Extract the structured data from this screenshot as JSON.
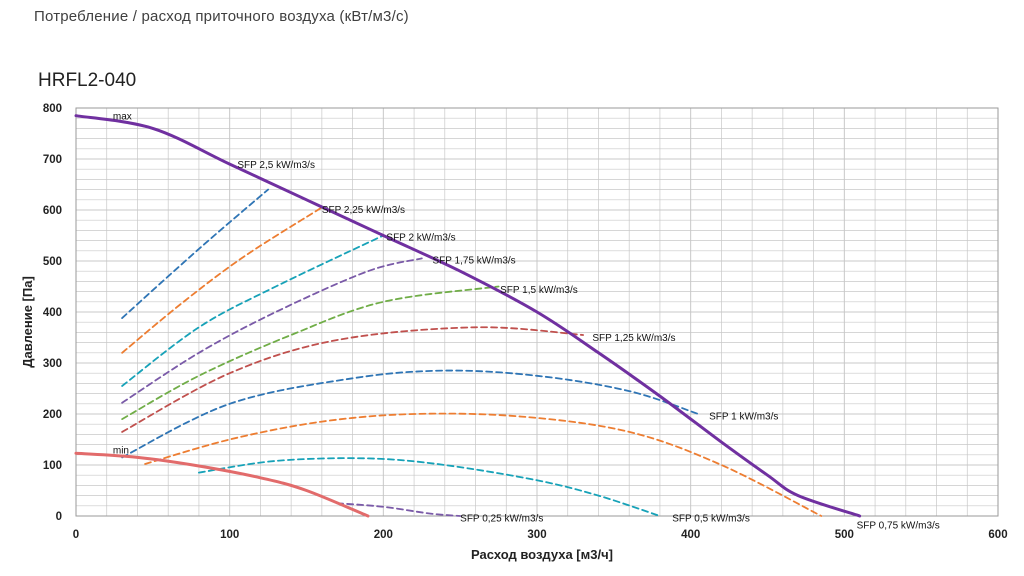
{
  "header": {
    "title": "Потребление / расход приточного воздуха (кВт/м3/с)"
  },
  "model": {
    "name": "HRFL2-040"
  },
  "chart_data": {
    "type": "line",
    "title": "HRFL2-040",
    "xlabel": "Расход воздуха [м3/ч]",
    "ylabel": "Давление [Па]",
    "xlim": [
      0,
      600
    ],
    "ylim": [
      0,
      800
    ],
    "x_ticks": [
      0,
      100,
      200,
      300,
      400,
      500,
      600
    ],
    "y_ticks": [
      0,
      100,
      200,
      300,
      400,
      500,
      600,
      700,
      800
    ],
    "grid": true,
    "colors": {
      "max": "#7030a0",
      "min": "#e26b6b",
      "blue": "#2f75b5",
      "orange": "#ed7d31",
      "teal": "#17a2b8",
      "purple": "#7a5aa8",
      "green": "#70ad47",
      "red": "#c0504d",
      "grid": "#c8c8c8"
    },
    "series": [
      {
        "name": "max",
        "label": "max",
        "color": "max",
        "style": "solid",
        "points": [
          [
            0,
            785
          ],
          [
            50,
            760
          ],
          [
            100,
            690
          ],
          [
            150,
            620
          ],
          [
            200,
            550
          ],
          [
            250,
            480
          ],
          [
            300,
            400
          ],
          [
            340,
            320
          ],
          [
            380,
            235
          ],
          [
            420,
            145
          ],
          [
            450,
            80
          ],
          [
            470,
            40
          ],
          [
            510,
            0
          ]
        ]
      },
      {
        "name": "min",
        "label": "min",
        "color": "min",
        "style": "solid",
        "points": [
          [
            0,
            123
          ],
          [
            40,
            115
          ],
          [
            80,
            98
          ],
          [
            120,
            75
          ],
          [
            150,
            50
          ],
          [
            190,
            0
          ]
        ]
      },
      {
        "name": "SFP 2,5",
        "label": "SFP 2,5 kW/m3/s",
        "color": "blue",
        "style": "dashed",
        "points": [
          [
            30,
            388
          ],
          [
            60,
            470
          ],
          [
            90,
            550
          ],
          [
            125,
            640
          ]
        ]
      },
      {
        "name": "SFP 2,25",
        "label": "SFP 2,25 kW/m3/s",
        "color": "orange",
        "style": "dashed",
        "points": [
          [
            30,
            320
          ],
          [
            70,
            420
          ],
          [
            110,
            510
          ],
          [
            160,
            605
          ]
        ]
      },
      {
        "name": "SFP 2",
        "label": "SFP 2 kW/m3/s",
        "color": "teal",
        "style": "dashed",
        "points": [
          [
            30,
            255
          ],
          [
            80,
            370
          ],
          [
            130,
            450
          ],
          [
            200,
            550
          ]
        ]
      },
      {
        "name": "SFP 1,75",
        "label": "SFP 1,75 kW/m3/s",
        "color": "purple",
        "style": "dashed",
        "points": [
          [
            30,
            222
          ],
          [
            80,
            320
          ],
          [
            130,
            400
          ],
          [
            190,
            480
          ],
          [
            225,
            505
          ]
        ]
      },
      {
        "name": "SFP 1,5",
        "label": "SFP 1,5 kW/m3/s",
        "color": "green",
        "style": "dashed",
        "points": [
          [
            30,
            190
          ],
          [
            80,
            275
          ],
          [
            140,
            355
          ],
          [
            200,
            420
          ],
          [
            275,
            450
          ]
        ]
      },
      {
        "name": "SFP 1,25",
        "label": "SFP 1,25 kW/m3/s",
        "color": "red",
        "style": "dashed",
        "points": [
          [
            30,
            165
          ],
          [
            100,
            280
          ],
          [
            170,
            345
          ],
          [
            260,
            370
          ],
          [
            330,
            355
          ]
        ]
      },
      {
        "name": "SFP 1",
        "label": "SFP 1 kW/m3/s",
        "color": "blue",
        "style": "dashed",
        "points": [
          [
            30,
            115
          ],
          [
            100,
            220
          ],
          [
            180,
            270
          ],
          [
            240,
            285
          ],
          [
            300,
            275
          ],
          [
            360,
            245
          ],
          [
            405,
            200
          ]
        ]
      },
      {
        "name": "SFP 0,75",
        "label": "SFP 0,75 kW/m3/s",
        "color": "orange",
        "style": "dashed",
        "points": [
          [
            45,
            102
          ],
          [
            100,
            150
          ],
          [
            160,
            185
          ],
          [
            220,
            200
          ],
          [
            290,
            195
          ],
          [
            360,
            165
          ],
          [
            420,
            100
          ],
          [
            485,
            0
          ]
        ]
      },
      {
        "name": "SFP 0,5",
        "label": "SFP 0,5 kW/m3/s",
        "color": "teal",
        "style": "dashed",
        "points": [
          [
            80,
            85
          ],
          [
            130,
            108
          ],
          [
            190,
            113
          ],
          [
            240,
            100
          ],
          [
            300,
            70
          ],
          [
            340,
            40
          ],
          [
            380,
            0
          ]
        ]
      },
      {
        "name": "SFP 0,25",
        "label": "SFP 0,25 kW/m3/s",
        "color": "purple",
        "style": "dashed",
        "points": [
          [
            170,
            25
          ],
          [
            200,
            18
          ],
          [
            230,
            5
          ],
          [
            250,
            0
          ]
        ]
      }
    ],
    "annotations": [
      {
        "text": "max",
        "x": 24,
        "y": 785
      },
      {
        "text": "min",
        "x": 24,
        "y": 130
      },
      {
        "text": "SFP 2,5 kW/m3/s",
        "x": 105,
        "y": 690
      },
      {
        "text": "SFP 2,25 kW/m3/s",
        "x": 160,
        "y": 602
      },
      {
        "text": "SFP 2 kW/m3/s",
        "x": 202,
        "y": 548
      },
      {
        "text": "SFP 1,75 kW/m3/s",
        "x": 232,
        "y": 503
      },
      {
        "text": "SFP 1,5 kW/m3/s",
        "x": 276,
        "y": 445
      },
      {
        "text": "SFP 1,25 kW/m3/s",
        "x": 336,
        "y": 351
      },
      {
        "text": "SFP 1 kW/m3/s",
        "x": 412,
        "y": 197
      },
      {
        "text": "SFP 0,75 kW/m3/s",
        "x": 508,
        "y": -17
      },
      {
        "text": "SFP 0,5 kW/m3/s",
        "x": 388,
        "y": -3
      },
      {
        "text": "SFP 0,25 kW/m3/s",
        "x": 250,
        "y": -3
      }
    ]
  }
}
